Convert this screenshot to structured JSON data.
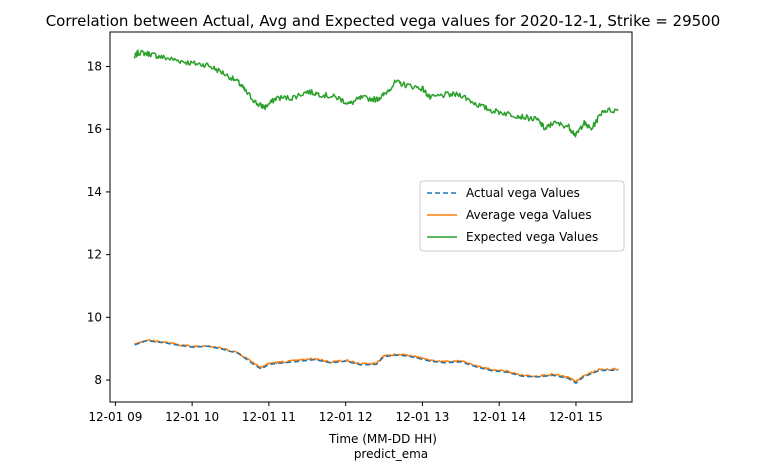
{
  "chart_data": {
    "type": "line",
    "title": "Correlation between Actual, Avg and Expected vega values for 2020-12-1, Strike = 29500",
    "xlabel": "Time (MM-DD HH)",
    "xlabel2": "predict_ema",
    "ylabel": "",
    "xlim": [
      8.93,
      15.73
    ],
    "ylim": [
      7.3,
      19.1
    ],
    "grid": false,
    "legend_position": "center-right",
    "x_ticks": [
      {
        "value": 9,
        "label": "12-01 09"
      },
      {
        "value": 10,
        "label": "12-01 10"
      },
      {
        "value": 11,
        "label": "12-01 11"
      },
      {
        "value": 12,
        "label": "12-01 12"
      },
      {
        "value": 13,
        "label": "12-01 13"
      },
      {
        "value": 14,
        "label": "12-01 14"
      },
      {
        "value": 15,
        "label": "12-01 15"
      }
    ],
    "y_ticks": [
      {
        "value": 8,
        "label": "8"
      },
      {
        "value": 10,
        "label": "10"
      },
      {
        "value": 12,
        "label": "12"
      },
      {
        "value": 14,
        "label": "14"
      },
      {
        "value": 16,
        "label": "16"
      },
      {
        "value": 18,
        "label": "18"
      }
    ],
    "series": [
      {
        "name": "Actual vega Values",
        "color": "#1f77b4",
        "style": "dashed",
        "x": [
          9.25,
          9.4,
          9.6,
          9.8,
          10.0,
          10.2,
          10.4,
          10.6,
          10.8,
          10.9,
          11.0,
          11.2,
          11.4,
          11.6,
          11.8,
          12.0,
          12.2,
          12.4,
          12.5,
          12.7,
          12.9,
          13.1,
          13.3,
          13.5,
          13.7,
          13.9,
          14.1,
          14.3,
          14.5,
          14.7,
          14.9,
          15.0,
          15.1,
          15.3,
          15.55
        ],
        "y": [
          9.12,
          9.25,
          9.2,
          9.12,
          9.05,
          9.08,
          8.98,
          8.85,
          8.5,
          8.35,
          8.5,
          8.55,
          8.6,
          8.65,
          8.55,
          8.6,
          8.48,
          8.5,
          8.75,
          8.8,
          8.72,
          8.6,
          8.55,
          8.58,
          8.42,
          8.3,
          8.25,
          8.12,
          8.1,
          8.15,
          8.05,
          7.9,
          8.1,
          8.3,
          8.32
        ]
      },
      {
        "name": "Average vega Values",
        "color": "#ff7f0e",
        "style": "solid",
        "x": [
          9.25,
          9.4,
          9.6,
          9.8,
          10.0,
          10.2,
          10.4,
          10.6,
          10.8,
          10.9,
          11.0,
          11.2,
          11.4,
          11.6,
          11.8,
          12.0,
          12.2,
          12.4,
          12.5,
          12.7,
          12.9,
          13.1,
          13.3,
          13.5,
          13.7,
          13.9,
          14.1,
          14.3,
          14.5,
          14.7,
          14.9,
          15.0,
          15.1,
          15.3,
          15.55
        ],
        "y": [
          9.15,
          9.27,
          9.22,
          9.14,
          9.07,
          9.1,
          9.0,
          8.87,
          8.55,
          8.4,
          8.53,
          8.58,
          8.63,
          8.68,
          8.58,
          8.63,
          8.51,
          8.53,
          8.78,
          8.83,
          8.75,
          8.63,
          8.58,
          8.61,
          8.45,
          8.33,
          8.28,
          8.15,
          8.13,
          8.18,
          8.08,
          7.95,
          8.13,
          8.33,
          8.35
        ]
      },
      {
        "name": "Expected vega Values",
        "color": "#2ca02c",
        "style": "solid",
        "x": [
          9.25,
          9.3,
          9.45,
          9.6,
          9.8,
          10.0,
          10.2,
          10.4,
          10.6,
          10.7,
          10.85,
          10.95,
          11.1,
          11.3,
          11.5,
          11.7,
          11.9,
          12.05,
          12.2,
          12.4,
          12.5,
          12.65,
          12.8,
          13.0,
          13.1,
          13.3,
          13.5,
          13.7,
          13.9,
          14.1,
          14.3,
          14.5,
          14.6,
          14.7,
          14.9,
          15.0,
          15.1,
          15.2,
          15.35,
          15.55
        ],
        "y": [
          18.3,
          18.45,
          18.4,
          18.3,
          18.2,
          18.1,
          18.05,
          17.8,
          17.5,
          17.2,
          16.8,
          16.7,
          17.0,
          17.0,
          17.2,
          17.1,
          17.0,
          16.8,
          17.0,
          16.95,
          17.1,
          17.5,
          17.4,
          17.3,
          17.0,
          17.1,
          17.1,
          16.8,
          16.6,
          16.5,
          16.4,
          16.3,
          16.0,
          16.2,
          16.1,
          15.8,
          16.2,
          16.0,
          16.6,
          16.6
        ]
      }
    ]
  }
}
